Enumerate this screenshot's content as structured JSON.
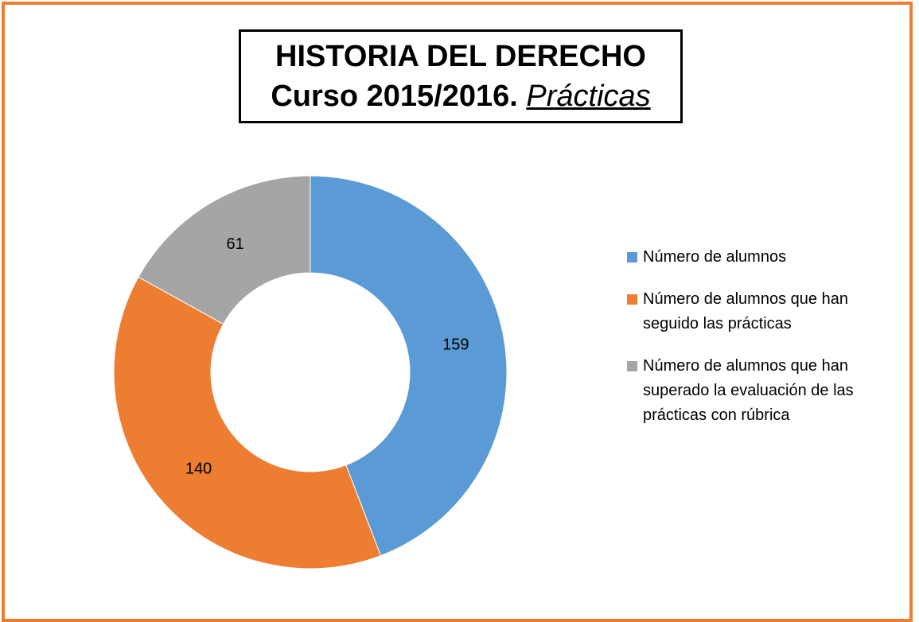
{
  "chart_data": {
    "type": "donut",
    "title": "HISTORIA DEL DERECHO",
    "subtitle": [
      "Curso 2015/2016.",
      "Prácticas"
    ],
    "categories": [
      "Número de alumnos",
      "Número de alumnos que han seguido las prácticas",
      "Número de alumnos que han superado la evaluación de las prácticas con rúbrica"
    ],
    "values": [
      159,
      140,
      61
    ],
    "colors": [
      "#5b9bd5",
      "#ed7d31",
      "#a5a5a5"
    ],
    "legend": "right"
  }
}
